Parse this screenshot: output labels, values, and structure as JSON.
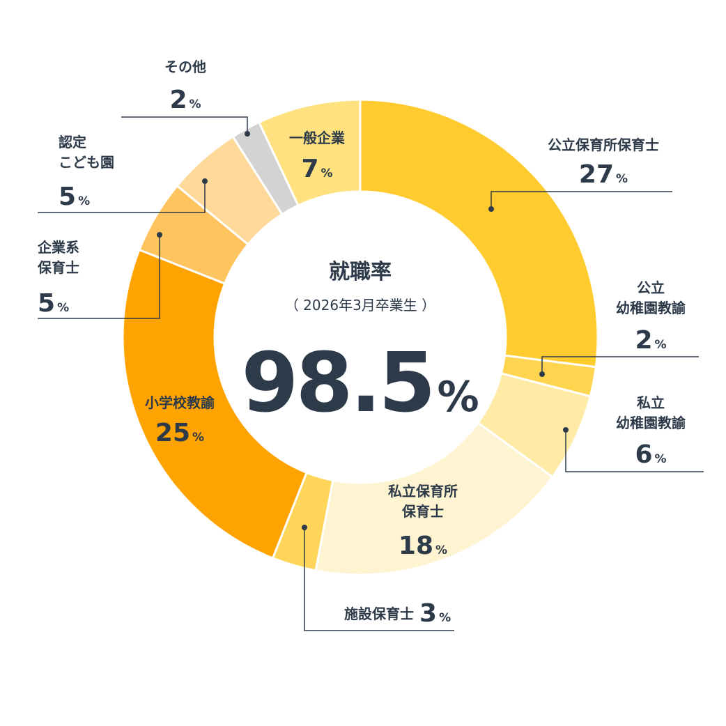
{
  "center": {
    "title": "就職率",
    "subtitle": "（ 2026年3月卒業生 ）",
    "value": "98.5",
    "unit": "%"
  },
  "chart_data": {
    "type": "pie",
    "variant": "donut",
    "start_angle_deg": 0,
    "direction": "clockwise",
    "slices": [
      {
        "label": "公立保育所保育士",
        "value": 27,
        "color": "#FFCB2E"
      },
      {
        "label": "公立幼稚園教諭",
        "value": 2,
        "color": "#FFD54F"
      },
      {
        "label": "私立幼稚園教諭",
        "value": 6,
        "color": "#FFEBA6"
      },
      {
        "label": "私立保育所保育士",
        "value": 18,
        "color": "#FFF4D1"
      },
      {
        "label": "施設保育士",
        "value": 3,
        "color": "#FFD65A"
      },
      {
        "label": "小学校教諭",
        "value": 25,
        "color": "#FFA300"
      },
      {
        "label": "企業系保育士",
        "value": 5,
        "color": "#FFC45E"
      },
      {
        "label": "認定こども園",
        "value": 5,
        "color": "#FFD99A"
      },
      {
        "label": "その他",
        "value": 2,
        "color": "#D3D3D3"
      },
      {
        "label": "一般企業",
        "value": 7,
        "color": "#FFE27F"
      }
    ]
  },
  "labels": {
    "l0": {
      "lines": [
        "公立保育所保育士"
      ],
      "pct": "27",
      "unit": "%"
    },
    "l1": {
      "lines": [
        "公立",
        "幼稚園教諭"
      ],
      "pct": "2",
      "unit": "%"
    },
    "l2": {
      "lines": [
        "私立",
        "幼稚園教諭"
      ],
      "pct": "6",
      "unit": "%"
    },
    "l3": {
      "lines": [
        "私立保育所",
        "保育士"
      ],
      "pct": "18",
      "unit": "%"
    },
    "l4": {
      "lines": [
        "施設保育士"
      ],
      "pct": "3",
      "unit": "%"
    },
    "l5": {
      "lines": [
        "小学校教諭"
      ],
      "pct": "25",
      "unit": "%"
    },
    "l6": {
      "lines": [
        "企業系",
        "保育士"
      ],
      "pct": "5",
      "unit": "%"
    },
    "l7": {
      "lines": [
        "認定",
        "こども園"
      ],
      "pct": "5",
      "unit": "%"
    },
    "l8": {
      "lines": [
        "その他"
      ],
      "pct": "2",
      "unit": "%"
    },
    "l9": {
      "lines": [
        "一般企業"
      ],
      "pct": "7",
      "unit": "%"
    }
  },
  "colors": {
    "text": "#2d3a4a",
    "leader": "#2d3a4a",
    "separator": "#ffffff"
  }
}
